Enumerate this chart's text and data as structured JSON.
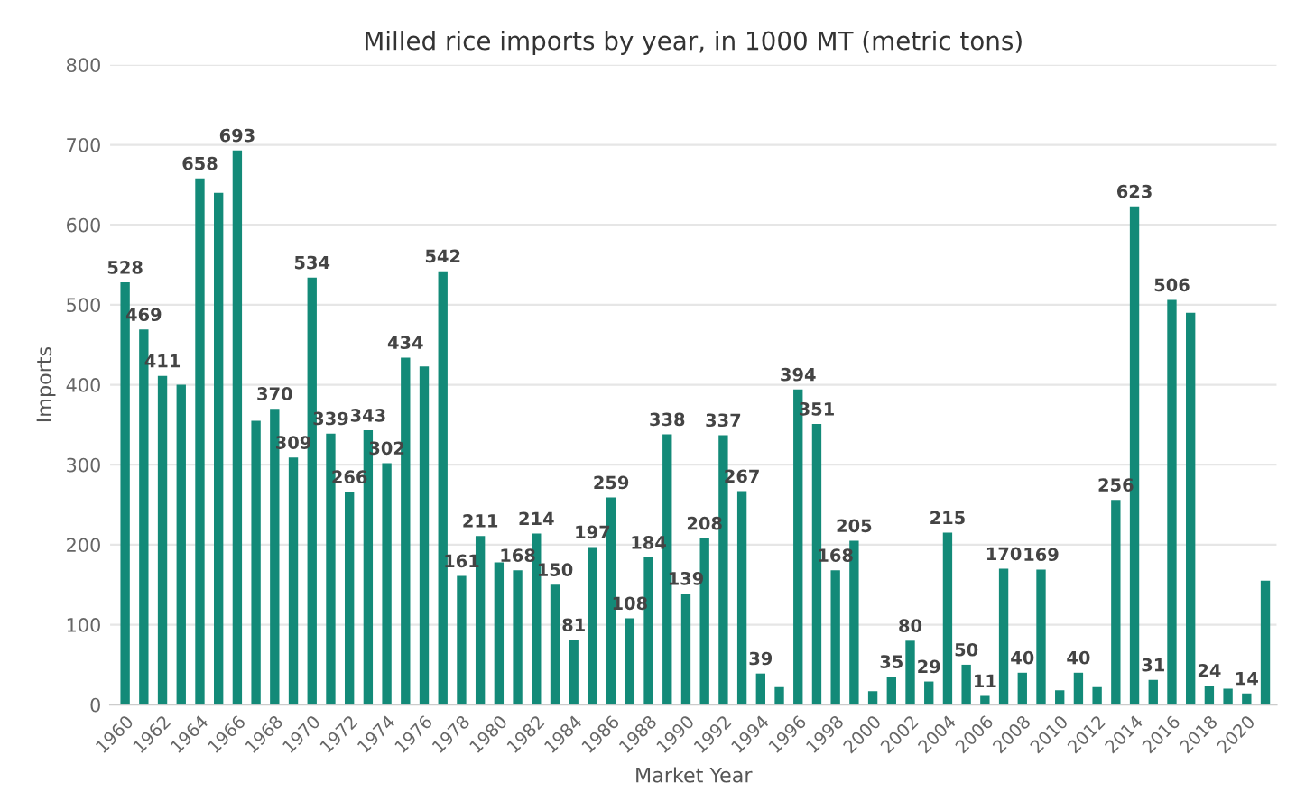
{
  "chart_data": {
    "type": "bar",
    "title": "Milled rice imports by year, in 1000 MT (metric tons)",
    "xlabel": "Market Year",
    "ylabel": "Imports",
    "categories": [
      "1960",
      null,
      "1962",
      null,
      "1964",
      null,
      "1966",
      null,
      "1968",
      null,
      "1970",
      null,
      "1972",
      null,
      "1974",
      null,
      "1976",
      null,
      "1978",
      null,
      "1980",
      null,
      "1982",
      null,
      "1984",
      null,
      "1986",
      null,
      "1988",
      null,
      "1990",
      null,
      "1992",
      null,
      "1994",
      null,
      "1996",
      null,
      "1998",
      null,
      "2000",
      null,
      "2002",
      null,
      "2004",
      null,
      "2006",
      null,
      "2008",
      null,
      "2010",
      null,
      "2012",
      null,
      "2014",
      null,
      "2016",
      null,
      "2018",
      null,
      "2020",
      null
    ],
    "values": [
      528,
      469,
      411,
      400,
      658,
      640,
      693,
      355,
      370,
      309,
      534,
      339,
      266,
      343,
      302,
      434,
      423,
      542,
      161,
      211,
      178,
      168,
      214,
      150,
      81,
      197,
      259,
      108,
      184,
      338,
      139,
      208,
      337,
      267,
      39,
      22,
      394,
      351,
      168,
      205,
      17,
      35,
      80,
      29,
      215,
      50,
      11,
      170,
      40,
      169,
      18,
      40,
      22,
      256,
      623,
      31,
      506,
      490,
      24,
      20,
      14,
      155
    ],
    "value_labels": [
      "528",
      "469",
      "411",
      null,
      "658",
      null,
      "693",
      null,
      "370",
      "309",
      "534",
      "339",
      "266",
      "343",
      "302",
      "434",
      null,
      "542",
      "161",
      "211",
      null,
      "168",
      "214",
      "150",
      "81",
      "197",
      "259",
      "108",
      "184",
      "338",
      "139",
      "208",
      "337",
      "267",
      "39",
      null,
      "394",
      "351",
      "168",
      "205",
      null,
      "35",
      "80",
      "29",
      "215",
      "50",
      "11",
      "170",
      "40",
      "169",
      null,
      "40",
      null,
      "256",
      "623",
      "31",
      "506",
      null,
      "24",
      null,
      "14",
      null
    ],
    "color": "#138a78",
    "ylim": [
      0,
      800
    ],
    "yticks": [
      0,
      100,
      200,
      300,
      400,
      500,
      600,
      700,
      800
    ],
    "grid": "y",
    "legend": false
  }
}
